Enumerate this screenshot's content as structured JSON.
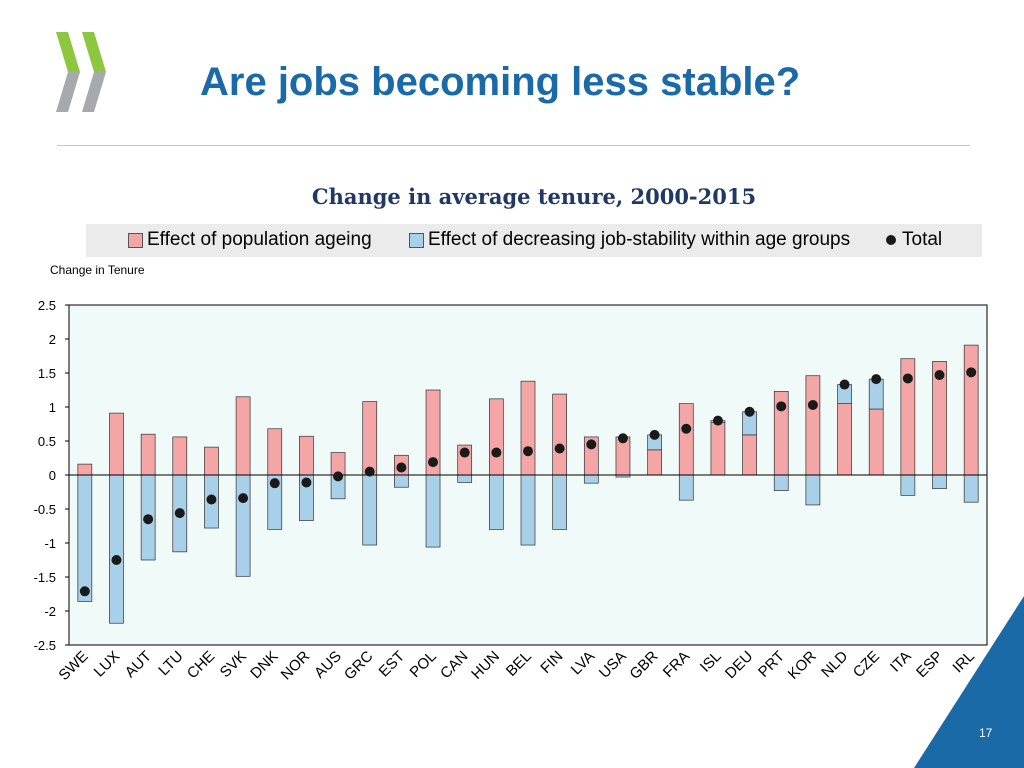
{
  "header": {
    "title": "Are jobs becoming less stable?"
  },
  "logo": {
    "icon": "oecd-chevron-logo-icon",
    "colors": [
      "#8dc63f",
      "#a7a9ac"
    ]
  },
  "footer": {
    "page_number": "17"
  },
  "chart_data": {
    "type": "bar",
    "stacked": true,
    "title": "Change in average tenure, 2000-2015",
    "ylabel": "Change in Tenure",
    "xlabel": "",
    "ylim": [
      -2.5,
      2.5
    ],
    "yticks": [
      2.5,
      2,
      1.5,
      1,
      0.5,
      0,
      -0.5,
      -1,
      -1.5,
      -2,
      -2.5
    ],
    "ytick_labels": [
      "2.5",
      "2",
      "1.5",
      "1",
      "0.5",
      "0",
      "-0.5",
      "-1",
      "-1.5",
      "-2",
      "-2.5"
    ],
    "grid": false,
    "legend_position": "top",
    "categories": [
      "SWE",
      "LUX",
      "AUT",
      "LTU",
      "CHE",
      "SVK",
      "DNK",
      "NOR",
      "AUS",
      "GRC",
      "EST",
      "POL",
      "CAN",
      "HUN",
      "BEL",
      "FIN",
      "LVA",
      "USA",
      "GBR",
      "FRA",
      "ISL",
      "DEU",
      "PRT",
      "KOR",
      "NLD",
      "CZE",
      "ITA",
      "ESP",
      "IRL"
    ],
    "series": [
      {
        "name": "Effect of population ageing",
        "color": "#f4a5a5",
        "values": [
          0.16,
          0.91,
          0.6,
          0.56,
          0.41,
          1.15,
          0.68,
          0.57,
          0.33,
          1.08,
          0.29,
          1.25,
          0.44,
          1.12,
          1.38,
          1.19,
          0.56,
          0.56,
          0.37,
          1.05,
          0.77,
          0.59,
          1.23,
          1.46,
          1.05,
          0.97,
          1.71,
          1.67,
          1.91
        ]
      },
      {
        "name": "Effect of decreasing job-stability within age groups",
        "color": "#a8d0e8",
        "values": [
          -1.86,
          -2.18,
          -1.25,
          -1.13,
          -0.78,
          -1.49,
          -0.8,
          -0.67,
          -0.35,
          -1.03,
          -0.18,
          -1.06,
          -0.11,
          -0.8,
          -1.03,
          -0.8,
          -0.12,
          -0.03,
          0.22,
          -0.37,
          0.03,
          0.34,
          -0.23,
          -0.44,
          0.28,
          0.44,
          -0.3,
          -0.2,
          -0.4
        ]
      },
      {
        "name": "Total",
        "color": "#1a1a1a",
        "values": [
          -1.71,
          -1.25,
          -0.65,
          -0.56,
          -0.36,
          -0.34,
          -0.12,
          -0.11,
          -0.02,
          0.05,
          0.11,
          0.19,
          0.33,
          0.33,
          0.35,
          0.39,
          0.45,
          0.54,
          0.59,
          0.68,
          0.8,
          0.93,
          1.01,
          1.03,
          1.33,
          1.41,
          1.42,
          1.47,
          1.51
        ]
      }
    ]
  }
}
